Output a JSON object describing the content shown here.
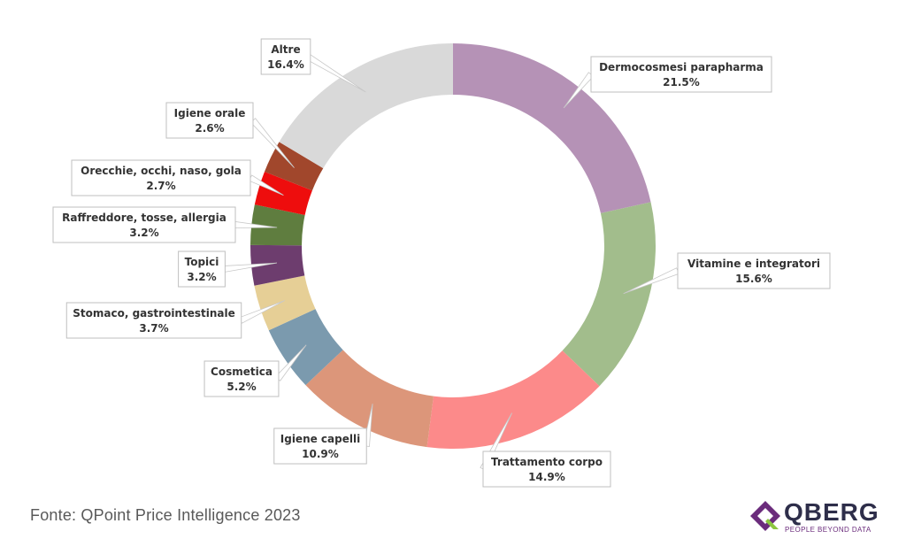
{
  "chart_data": {
    "type": "pie",
    "donut": true,
    "value_suffix": "%",
    "slices": [
      {
        "label": "Dermocosmesi parapharma",
        "value": 21.5,
        "display": "21.5%",
        "color": "#b592b6"
      },
      {
        "label": "Vitamine e integratori",
        "value": 15.6,
        "display": "15.6%",
        "color": "#a2bd8c"
      },
      {
        "label": "Trattamento corpo",
        "value": 14.9,
        "display": "14.9%",
        "color": "#fc8a8a"
      },
      {
        "label": "Igiene capelli",
        "value": 10.9,
        "display": "10.9%",
        "color": "#dc967a"
      },
      {
        "label": "Cosmetica",
        "value": 5.2,
        "display": "5.2%",
        "color": "#7b9aae"
      },
      {
        "label": "Stomaco, gastrointestinale",
        "value": 3.7,
        "display": "3.7%",
        "color": "#e6cf96"
      },
      {
        "label": "Topici",
        "value": 3.2,
        "display": "3.2%",
        "color": "#6d3d6e"
      },
      {
        "label": "Raffreddore, tosse, allergia",
        "value": 3.2,
        "display": "3.2%",
        "color": "#5f7d3f"
      },
      {
        "label": "Orecchie, occhi, naso, gola",
        "value": 2.7,
        "display": "2.7%",
        "color": "#ee0d0d"
      },
      {
        "label": "Igiene orale",
        "value": 2.6,
        "display": "2.6%",
        "color": "#a1472c"
      },
      {
        "label": "Altre",
        "value": 16.4,
        "display": "16.4%",
        "color": "#d9d9d9"
      }
    ]
  },
  "footer": {
    "source": "Fonte: QPoint Price Intelligence 2023"
  },
  "logo": {
    "name": "QBERG",
    "tagline": "PEOPLE BEYOND DATA",
    "colors": [
      "#6b2c7c",
      "#8cc63f"
    ]
  }
}
